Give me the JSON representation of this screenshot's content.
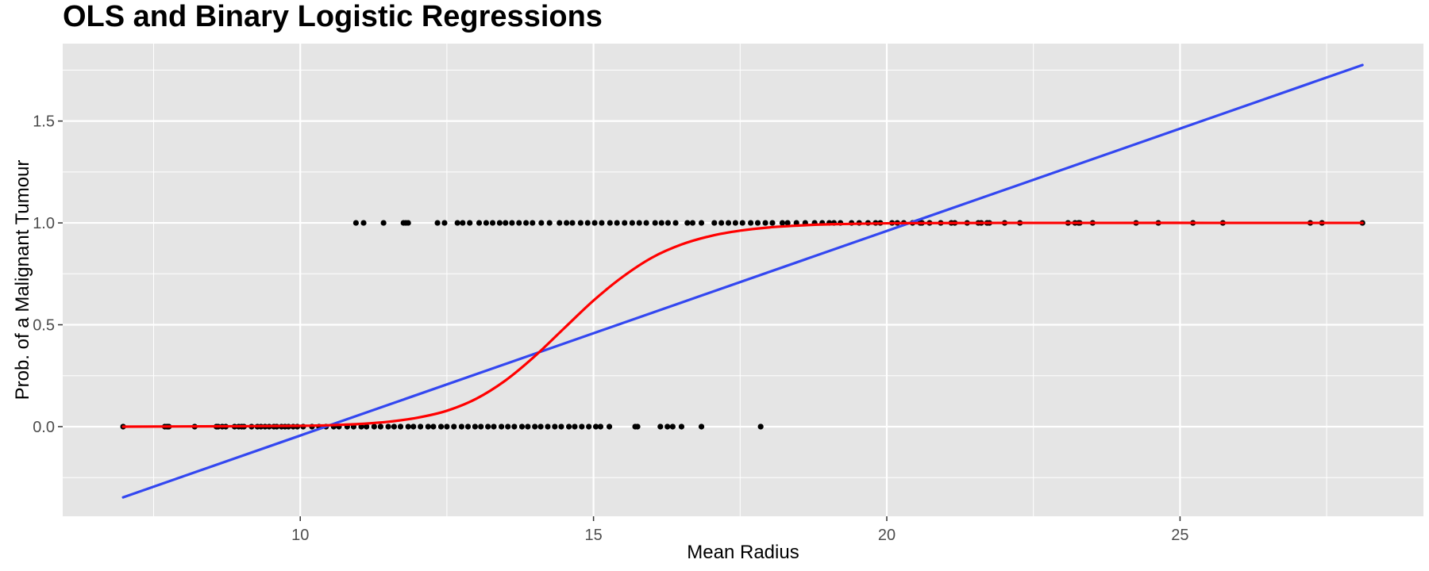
{
  "chart_data": {
    "type": "scatter",
    "title": "OLS and Binary Logistic Regressions",
    "xlabel": "Mean Radius",
    "ylabel": "Prob. of a Malignant Tumour",
    "xlim": [
      5.95,
      29.15
    ],
    "ylim": [
      -0.44,
      1.88
    ],
    "x_ticks": [
      10,
      15,
      20,
      25
    ],
    "x_tick_labels": [
      "10",
      "15",
      "20",
      "25"
    ],
    "y_ticks": [
      0.0,
      0.5,
      1.0,
      1.5
    ],
    "y_tick_labels": [
      "0.0",
      "0.5",
      "1.0",
      "1.5"
    ],
    "grid": true,
    "legend": "none",
    "colors": {
      "panel": "#e5e5e5",
      "grid": "#ffffff",
      "points": "#000000",
      "ols_line": "#3347f0",
      "logistic_curve": "#ff0000"
    },
    "points": [
      {
        "x": 6.98,
        "y": 0
      },
      {
        "x": 7.69,
        "y": 0
      },
      {
        "x": 7.76,
        "y": 0
      },
      {
        "x": 7.73,
        "y": 0
      },
      {
        "x": 8.2,
        "y": 0
      },
      {
        "x": 8.57,
        "y": 0
      },
      {
        "x": 8.6,
        "y": 0
      },
      {
        "x": 8.67,
        "y": 0
      },
      {
        "x": 8.73,
        "y": 0
      },
      {
        "x": 8.88,
        "y": 0
      },
      {
        "x": 8.95,
        "y": 0
      },
      {
        "x": 9.0,
        "y": 0
      },
      {
        "x": 9.04,
        "y": 0
      },
      {
        "x": 9.17,
        "y": 0
      },
      {
        "x": 9.27,
        "y": 0
      },
      {
        "x": 9.33,
        "y": 0
      },
      {
        "x": 9.4,
        "y": 0
      },
      {
        "x": 9.47,
        "y": 0
      },
      {
        "x": 9.55,
        "y": 0
      },
      {
        "x": 9.6,
        "y": 0
      },
      {
        "x": 9.68,
        "y": 0
      },
      {
        "x": 9.74,
        "y": 0
      },
      {
        "x": 9.8,
        "y": 0
      },
      {
        "x": 9.88,
        "y": 0
      },
      {
        "x": 9.95,
        "y": 0
      },
      {
        "x": 10.05,
        "y": 0
      },
      {
        "x": 10.2,
        "y": 0
      },
      {
        "x": 10.32,
        "y": 0
      },
      {
        "x": 10.44,
        "y": 0
      },
      {
        "x": 10.57,
        "y": 0
      },
      {
        "x": 10.66,
        "y": 0
      },
      {
        "x": 10.8,
        "y": 0
      },
      {
        "x": 10.91,
        "y": 0
      },
      {
        "x": 11.04,
        "y": 0
      },
      {
        "x": 11.13,
        "y": 0
      },
      {
        "x": 11.26,
        "y": 0
      },
      {
        "x": 11.37,
        "y": 0
      },
      {
        "x": 11.5,
        "y": 0
      },
      {
        "x": 11.6,
        "y": 0
      },
      {
        "x": 11.71,
        "y": 0
      },
      {
        "x": 11.84,
        "y": 0
      },
      {
        "x": 11.93,
        "y": 0
      },
      {
        "x": 12.05,
        "y": 0
      },
      {
        "x": 12.18,
        "y": 0
      },
      {
        "x": 12.27,
        "y": 0
      },
      {
        "x": 12.4,
        "y": 0
      },
      {
        "x": 12.5,
        "y": 0
      },
      {
        "x": 12.62,
        "y": 0
      },
      {
        "x": 12.75,
        "y": 0
      },
      {
        "x": 12.86,
        "y": 0
      },
      {
        "x": 12.98,
        "y": 0
      },
      {
        "x": 13.08,
        "y": 0
      },
      {
        "x": 13.2,
        "y": 0
      },
      {
        "x": 13.3,
        "y": 0
      },
      {
        "x": 13.43,
        "y": 0
      },
      {
        "x": 13.54,
        "y": 0
      },
      {
        "x": 13.65,
        "y": 0
      },
      {
        "x": 13.78,
        "y": 0
      },
      {
        "x": 13.88,
        "y": 0
      },
      {
        "x": 14.0,
        "y": 0
      },
      {
        "x": 14.1,
        "y": 0
      },
      {
        "x": 14.22,
        "y": 0
      },
      {
        "x": 14.34,
        "y": 0
      },
      {
        "x": 14.45,
        "y": 0
      },
      {
        "x": 14.58,
        "y": 0
      },
      {
        "x": 14.68,
        "y": 0
      },
      {
        "x": 14.8,
        "y": 0
      },
      {
        "x": 14.92,
        "y": 0
      },
      {
        "x": 15.04,
        "y": 0
      },
      {
        "x": 15.12,
        "y": 0
      },
      {
        "x": 15.27,
        "y": 0
      },
      {
        "x": 15.71,
        "y": 0
      },
      {
        "x": 15.75,
        "y": 0
      },
      {
        "x": 16.14,
        "y": 0
      },
      {
        "x": 16.26,
        "y": 0
      },
      {
        "x": 16.35,
        "y": 0
      },
      {
        "x": 16.5,
        "y": 0
      },
      {
        "x": 16.84,
        "y": 0
      },
      {
        "x": 17.85,
        "y": 0
      },
      {
        "x": 10.95,
        "y": 1
      },
      {
        "x": 11.08,
        "y": 1
      },
      {
        "x": 11.42,
        "y": 1
      },
      {
        "x": 11.76,
        "y": 1
      },
      {
        "x": 11.8,
        "y": 1
      },
      {
        "x": 11.84,
        "y": 1
      },
      {
        "x": 12.34,
        "y": 1
      },
      {
        "x": 12.46,
        "y": 1
      },
      {
        "x": 12.68,
        "y": 1
      },
      {
        "x": 12.77,
        "y": 1
      },
      {
        "x": 12.89,
        "y": 1
      },
      {
        "x": 13.05,
        "y": 1
      },
      {
        "x": 13.17,
        "y": 1
      },
      {
        "x": 13.28,
        "y": 1
      },
      {
        "x": 13.4,
        "y": 1
      },
      {
        "x": 13.5,
        "y": 1
      },
      {
        "x": 13.61,
        "y": 1
      },
      {
        "x": 13.73,
        "y": 1
      },
      {
        "x": 13.85,
        "y": 1
      },
      {
        "x": 13.96,
        "y": 1
      },
      {
        "x": 14.11,
        "y": 1
      },
      {
        "x": 14.25,
        "y": 1
      },
      {
        "x": 14.42,
        "y": 1
      },
      {
        "x": 14.54,
        "y": 1
      },
      {
        "x": 14.64,
        "y": 1
      },
      {
        "x": 14.78,
        "y": 1
      },
      {
        "x": 14.9,
        "y": 1
      },
      {
        "x": 15.02,
        "y": 1
      },
      {
        "x": 15.14,
        "y": 1
      },
      {
        "x": 15.28,
        "y": 1
      },
      {
        "x": 15.4,
        "y": 1
      },
      {
        "x": 15.53,
        "y": 1
      },
      {
        "x": 15.66,
        "y": 1
      },
      {
        "x": 15.78,
        "y": 1
      },
      {
        "x": 15.9,
        "y": 1
      },
      {
        "x": 16.05,
        "y": 1
      },
      {
        "x": 16.16,
        "y": 1
      },
      {
        "x": 16.27,
        "y": 1
      },
      {
        "x": 16.4,
        "y": 1
      },
      {
        "x": 16.6,
        "y": 1
      },
      {
        "x": 16.69,
        "y": 1
      },
      {
        "x": 16.84,
        "y": 1
      },
      {
        "x": 17.06,
        "y": 1
      },
      {
        "x": 17.18,
        "y": 1
      },
      {
        "x": 17.3,
        "y": 1
      },
      {
        "x": 17.42,
        "y": 1
      },
      {
        "x": 17.54,
        "y": 1
      },
      {
        "x": 17.68,
        "y": 1
      },
      {
        "x": 17.8,
        "y": 1
      },
      {
        "x": 17.93,
        "y": 1
      },
      {
        "x": 18.05,
        "y": 1
      },
      {
        "x": 18.22,
        "y": 1
      },
      {
        "x": 18.31,
        "y": 1
      },
      {
        "x": 18.46,
        "y": 1
      },
      {
        "x": 18.61,
        "y": 1
      },
      {
        "x": 18.77,
        "y": 1
      },
      {
        "x": 18.9,
        "y": 1
      },
      {
        "x": 19.02,
        "y": 1
      },
      {
        "x": 19.1,
        "y": 1
      },
      {
        "x": 19.21,
        "y": 1
      },
      {
        "x": 19.4,
        "y": 1
      },
      {
        "x": 19.53,
        "y": 1
      },
      {
        "x": 19.68,
        "y": 1
      },
      {
        "x": 19.81,
        "y": 1
      },
      {
        "x": 19.89,
        "y": 1
      },
      {
        "x": 20.09,
        "y": 1
      },
      {
        "x": 20.18,
        "y": 1
      },
      {
        "x": 20.29,
        "y": 1
      },
      {
        "x": 20.44,
        "y": 1
      },
      {
        "x": 20.57,
        "y": 1
      },
      {
        "x": 20.6,
        "y": 1
      },
      {
        "x": 20.73,
        "y": 1
      },
      {
        "x": 20.92,
        "y": 1
      },
      {
        "x": 21.1,
        "y": 1
      },
      {
        "x": 21.16,
        "y": 1
      },
      {
        "x": 21.37,
        "y": 1
      },
      {
        "x": 21.56,
        "y": 1
      },
      {
        "x": 21.61,
        "y": 1
      },
      {
        "x": 21.71,
        "y": 1
      },
      {
        "x": 21.75,
        "y": 1
      },
      {
        "x": 22.01,
        "y": 1
      },
      {
        "x": 22.27,
        "y": 1
      },
      {
        "x": 23.09,
        "y": 1
      },
      {
        "x": 23.21,
        "y": 1
      },
      {
        "x": 23.27,
        "y": 1
      },
      {
        "x": 23.29,
        "y": 1
      },
      {
        "x": 23.51,
        "y": 1
      },
      {
        "x": 24.25,
        "y": 1
      },
      {
        "x": 24.63,
        "y": 1
      },
      {
        "x": 25.22,
        "y": 1
      },
      {
        "x": 25.73,
        "y": 1
      },
      {
        "x": 27.22,
        "y": 1
      },
      {
        "x": 27.42,
        "y": 1
      },
      {
        "x": 28.11,
        "y": 1
      }
    ],
    "series": [
      {
        "type": "line",
        "x": [
          6.98,
          28.11
        ],
        "y": [
          -0.347,
          1.775
        ]
      },
      {
        "type": "line",
        "x": [
          6.98,
          9.0,
          10.0,
          10.5,
          11.0,
          11.5,
          12.0,
          12.5,
          13.0,
          13.5,
          14.0,
          14.5,
          15.0,
          15.5,
          16.0,
          16.5,
          17.0,
          17.5,
          18.0,
          18.5,
          19.0,
          20.0,
          22.0,
          28.11
        ],
        "y": [
          0.0,
          0.002,
          0.004,
          0.007,
          0.013,
          0.024,
          0.044,
          0.078,
          0.137,
          0.227,
          0.346,
          0.483,
          0.619,
          0.736,
          0.83,
          0.894,
          0.936,
          0.962,
          0.978,
          0.987,
          0.993,
          0.998,
          1.0,
          1.0
        ]
      }
    ]
  }
}
